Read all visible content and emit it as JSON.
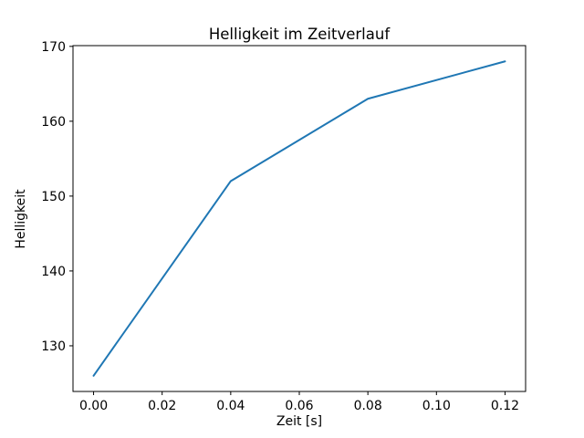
{
  "chart_data": {
    "type": "line",
    "title": "Helligkeit im Zeitverlauf",
    "xlabel": "Zeit [s]",
    "ylabel": "Helligkeit",
    "x": [
      0.0,
      0.04,
      0.08,
      0.12
    ],
    "y": [
      126,
      152,
      163,
      168
    ],
    "xlim": [
      -0.006,
      0.126
    ],
    "ylim": [
      123.9,
      170.1
    ],
    "xticks": [
      0.0,
      0.02,
      0.04,
      0.06,
      0.08,
      0.1,
      0.12
    ],
    "xtick_labels": [
      "0.00",
      "0.02",
      "0.04",
      "0.06",
      "0.08",
      "0.10",
      "0.12"
    ],
    "yticks": [
      130,
      140,
      150,
      160,
      170
    ],
    "ytick_labels": [
      "130",
      "140",
      "150",
      "160",
      "170"
    ],
    "line_color": "#1f77b4",
    "axis_color": "#000000",
    "grid": false,
    "legend_position": "none"
  }
}
